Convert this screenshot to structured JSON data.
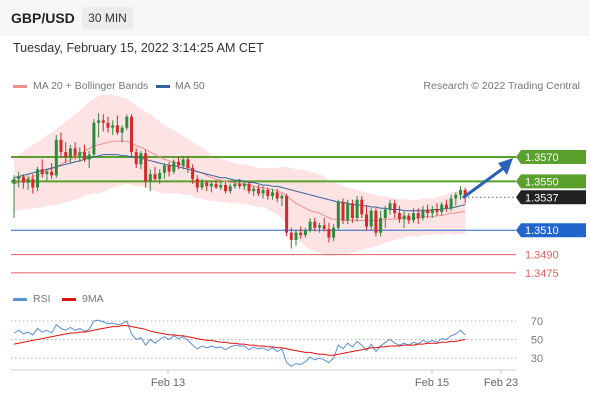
{
  "header": {
    "symbol": "GBP/USD",
    "timeframe": "30 MIN"
  },
  "datetime": "Tuesday, February 15, 2022 3:14:25 AM CET",
  "legend": {
    "ma20": "MA 20 + Bollinger Bands",
    "ma50": "MA 50",
    "credit": "Research © 2022 Trading Central",
    "rsi": "RSI",
    "ma9": "9MA"
  },
  "colors": {
    "ma20": "#f08f8f",
    "band_fill": "#fde3e3",
    "ma50": "#35609e",
    "up_candle": "#2e8b3d",
    "down_candle": "#d42a2a",
    "resistance": "#5aa02c",
    "pivot": "#2266cc",
    "support": "#e06060",
    "current": "#222222",
    "arrow": "#2a62b8",
    "rsi": "#5b8fd6",
    "rsi_ma": "#dd1111"
  },
  "chart_data": [
    {
      "type": "candlestick",
      "title": "GBP/USD 30 MIN",
      "x_labels": [
        "Feb 13",
        "Feb 15",
        "Feb 23"
      ],
      "levels": [
        {
          "value": 1.357,
          "label": "1.3570",
          "kind": "resistance"
        },
        {
          "value": 1.355,
          "label": "1.3550",
          "kind": "resistance"
        },
        {
          "value": 1.3537,
          "label": "1.3537",
          "kind": "current"
        },
        {
          "value": 1.351,
          "label": "1.3510",
          "kind": "pivot"
        },
        {
          "value": 1.349,
          "label": "1.3490",
          "kind": "support"
        },
        {
          "value": 1.3475,
          "label": "1.3475",
          "kind": "support"
        }
      ],
      "forecast_direction": "up",
      "ohlc": [
        [
          1.3548,
          1.3555,
          1.352,
          1.3552
        ],
        [
          1.3552,
          1.3558,
          1.3545,
          1.3554
        ],
        [
          1.3554,
          1.3556,
          1.3544,
          1.3549
        ],
        [
          1.3549,
          1.3555,
          1.3543,
          1.3552
        ],
        [
          1.3552,
          1.3556,
          1.354,
          1.3545
        ],
        [
          1.3545,
          1.3562,
          1.3542,
          1.356
        ],
        [
          1.356,
          1.3568,
          1.3553,
          1.3556
        ],
        [
          1.3556,
          1.356,
          1.355,
          1.3558
        ],
        [
          1.3558,
          1.3565,
          1.3552,
          1.3555
        ],
        [
          1.3555,
          1.3588,
          1.3553,
          1.3584
        ],
        [
          1.3584,
          1.359,
          1.357,
          1.3574
        ],
        [
          1.3574,
          1.3582,
          1.3565,
          1.357
        ],
        [
          1.357,
          1.358,
          1.3565,
          1.3577
        ],
        [
          1.3577,
          1.3582,
          1.3568,
          1.3571
        ],
        [
          1.3571,
          1.3578,
          1.3566,
          1.3574
        ],
        [
          1.3574,
          1.358,
          1.3566,
          1.3568
        ],
        [
          1.3568,
          1.3575,
          1.3561,
          1.3572
        ],
        [
          1.3572,
          1.3601,
          1.357,
          1.3598
        ],
        [
          1.3598,
          1.3606,
          1.3586,
          1.36
        ],
        [
          1.36,
          1.3605,
          1.3591,
          1.3598
        ],
        [
          1.3598,
          1.3603,
          1.359,
          1.3594
        ],
        [
          1.3594,
          1.36,
          1.3588,
          1.3596
        ],
        [
          1.3596,
          1.3604,
          1.3588,
          1.359
        ],
        [
          1.359,
          1.3596,
          1.3582,
          1.3594
        ],
        [
          1.3594,
          1.3605,
          1.3592,
          1.3603
        ],
        [
          1.3603,
          1.3605,
          1.357,
          1.3574
        ],
        [
          1.3574,
          1.3577,
          1.3561,
          1.3564
        ],
        [
          1.3564,
          1.3575,
          1.356,
          1.3573
        ],
        [
          1.3573,
          1.3576,
          1.3545,
          1.355
        ],
        [
          1.355,
          1.356,
          1.3542,
          1.3556
        ],
        [
          1.3556,
          1.3562,
          1.355,
          1.3552
        ],
        [
          1.3552,
          1.356,
          1.3548,
          1.3557
        ],
        [
          1.3557,
          1.3565,
          1.3552,
          1.3563
        ],
        [
          1.3563,
          1.3566,
          1.3554,
          1.3558
        ],
        [
          1.3558,
          1.3568,
          1.3556,
          1.3566
        ],
        [
          1.3566,
          1.357,
          1.356,
          1.3563
        ],
        [
          1.3563,
          1.3571,
          1.356,
          1.3568
        ],
        [
          1.3568,
          1.3571,
          1.3557,
          1.3561
        ],
        [
          1.3561,
          1.3564,
          1.3548,
          1.3552
        ],
        [
          1.3552,
          1.3555,
          1.3541,
          1.3545
        ],
        [
          1.3545,
          1.3552,
          1.3543,
          1.3549
        ],
        [
          1.3549,
          1.3551,
          1.3542,
          1.3546
        ],
        [
          1.3546,
          1.355,
          1.3541,
          1.3548
        ],
        [
          1.3548,
          1.3551,
          1.3544,
          1.3545
        ],
        [
          1.3545,
          1.355,
          1.3543,
          1.3547
        ],
        [
          1.3547,
          1.3549,
          1.354,
          1.3542
        ],
        [
          1.3542,
          1.3548,
          1.354,
          1.3546
        ],
        [
          1.3546,
          1.355,
          1.3544,
          1.3548
        ],
        [
          1.3548,
          1.3552,
          1.3544,
          1.3546
        ],
        [
          1.3546,
          1.355,
          1.3543,
          1.3548
        ],
        [
          1.3548,
          1.355,
          1.354,
          1.3542
        ],
        [
          1.3542,
          1.3546,
          1.3538,
          1.3544
        ],
        [
          1.3544,
          1.3547,
          1.3538,
          1.354
        ],
        [
          1.354,
          1.3546,
          1.3536,
          1.3543
        ],
        [
          1.3543,
          1.3545,
          1.3535,
          1.3538
        ],
        [
          1.3538,
          1.3544,
          1.3535,
          1.3541
        ],
        [
          1.3541,
          1.3544,
          1.3533,
          1.3536
        ],
        [
          1.3536,
          1.354,
          1.353,
          1.3538
        ],
        [
          1.3538,
          1.354,
          1.3505,
          1.3508
        ],
        [
          1.3508,
          1.3512,
          1.3495,
          1.3502
        ],
        [
          1.3502,
          1.351,
          1.3497,
          1.3508
        ],
        [
          1.3508,
          1.3513,
          1.3503,
          1.3506
        ],
        [
          1.3506,
          1.3512,
          1.3504,
          1.351
        ],
        [
          1.351,
          1.352,
          1.3508,
          1.3517
        ],
        [
          1.3517,
          1.352,
          1.3509,
          1.3512
        ],
        [
          1.3512,
          1.3516,
          1.3508,
          1.3514
        ],
        [
          1.3514,
          1.352,
          1.3509,
          1.3511
        ],
        [
          1.3511,
          1.3516,
          1.35,
          1.3504
        ],
        [
          1.3504,
          1.3515,
          1.3501,
          1.3512
        ],
        [
          1.3512,
          1.3535,
          1.351,
          1.3533
        ],
        [
          1.3533,
          1.3536,
          1.3515,
          1.3518
        ],
        [
          1.3518,
          1.3535,
          1.3515,
          1.3532
        ],
        [
          1.3532,
          1.3535,
          1.3516,
          1.352
        ],
        [
          1.352,
          1.3538,
          1.3517,
          1.3535
        ],
        [
          1.3535,
          1.3538,
          1.352,
          1.3523
        ],
        [
          1.3523,
          1.353,
          1.351,
          1.3513
        ],
        [
          1.3513,
          1.3528,
          1.351,
          1.3526
        ],
        [
          1.3526,
          1.3528,
          1.3505,
          1.3508
        ],
        [
          1.3508,
          1.3526,
          1.3505,
          1.352
        ],
        [
          1.352,
          1.353,
          1.3512,
          1.3527
        ],
        [
          1.3527,
          1.3535,
          1.3523,
          1.3532
        ],
        [
          1.3532,
          1.3535,
          1.352,
          1.3524
        ],
        [
          1.3524,
          1.353,
          1.3516,
          1.3519
        ],
        [
          1.3519,
          1.3525,
          1.3512,
          1.3522
        ],
        [
          1.3522,
          1.3524,
          1.3515,
          1.3518
        ],
        [
          1.3518,
          1.3528,
          1.3516,
          1.3524
        ],
        [
          1.3524,
          1.3528,
          1.3515,
          1.352
        ],
        [
          1.352,
          1.353,
          1.3518,
          1.3527
        ],
        [
          1.3527,
          1.3531,
          1.352,
          1.3524
        ],
        [
          1.3524,
          1.353,
          1.352,
          1.3527
        ],
        [
          1.3527,
          1.3532,
          1.3522,
          1.3525
        ],
        [
          1.3525,
          1.3533,
          1.3522,
          1.3531
        ],
        [
          1.3531,
          1.3535,
          1.3525,
          1.3528
        ],
        [
          1.3528,
          1.3539,
          1.3526,
          1.3536
        ],
        [
          1.3536,
          1.3541,
          1.353,
          1.3539
        ],
        [
          1.3539,
          1.3546,
          1.3535,
          1.3543
        ],
        [
          1.3543,
          1.3545,
          1.3532,
          1.3537
        ]
      ],
      "ma20": [
        1.3548,
        1.3549,
        1.3551,
        1.3552,
        1.3554,
        1.3555,
        1.3557,
        1.3559,
        1.356,
        1.3562,
        1.3564,
        1.3566,
        1.3568,
        1.357,
        1.3572,
        1.3575,
        1.3577,
        1.3579,
        1.358,
        1.3581,
        1.3582,
        1.3583,
        1.3583,
        1.3583,
        1.3583,
        1.3581,
        1.3579,
        1.3578,
        1.3576,
        1.3574,
        1.3572,
        1.357,
        1.3568,
        1.3567,
        1.3566,
        1.3565,
        1.3563,
        1.3562,
        1.356,
        1.3558,
        1.3557,
        1.3555,
        1.3553,
        1.3552,
        1.3551,
        1.355,
        1.3549,
        1.3549,
        1.3548,
        1.3548,
        1.3547,
        1.3546,
        1.3545,
        1.3545,
        1.3544,
        1.3543,
        1.3542,
        1.3541,
        1.3538,
        1.3535,
        1.3532,
        1.353,
        1.3528,
        1.3526,
        1.3525,
        1.3524,
        1.3522,
        1.352,
        1.3519,
        1.3519,
        1.3518,
        1.3518,
        1.3518,
        1.3518,
        1.3518,
        1.3518,
        1.3518,
        1.3518,
        1.3518,
        1.3519,
        1.3519,
        1.3519,
        1.3519,
        1.352,
        1.352,
        1.352,
        1.352,
        1.3521,
        1.3521,
        1.3521,
        1.3522,
        1.3522,
        1.3523,
        1.3524,
        1.3524,
        1.3525,
        1.3525
      ],
      "bb_width": [
        0.0022,
        0.0023,
        0.0024,
        0.0025,
        0.0026,
        0.0027,
        0.0028,
        0.0029,
        0.003,
        0.0031,
        0.0032,
        0.0033,
        0.0034,
        0.0035,
        0.0036,
        0.0037,
        0.0038,
        0.0039,
        0.004,
        0.004,
        0.0039,
        0.0038,
        0.0037,
        0.0036,
        0.0035,
        0.0034,
        0.0033,
        0.0032,
        0.0031,
        0.0031,
        0.003,
        0.0029,
        0.0028,
        0.0027,
        0.0026,
        0.0025,
        0.0024,
        0.0023,
        0.0022,
        0.0022,
        0.0021,
        0.002,
        0.0019,
        0.0018,
        0.0018,
        0.0017,
        0.0017,
        0.0016,
        0.0016,
        0.0016,
        0.0016,
        0.0016,
        0.0016,
        0.0016,
        0.0017,
        0.0018,
        0.0019,
        0.0021,
        0.0024,
        0.0026,
        0.0028,
        0.003,
        0.0031,
        0.0032,
        0.0032,
        0.0032,
        0.0032,
        0.0031,
        0.003,
        0.0029,
        0.0028,
        0.0027,
        0.0026,
        0.0025,
        0.0024,
        0.0023,
        0.0022,
        0.0021,
        0.002,
        0.0019,
        0.0018,
        0.0017,
        0.0016,
        0.0016,
        0.0015,
        0.0015,
        0.0015,
        0.0015,
        0.0015,
        0.0015,
        0.0015,
        0.0016,
        0.0016,
        0.0017,
        0.0018,
        0.0018,
        0.0018
      ],
      "ma50": [
        1.3553,
        1.3554,
        1.3555,
        1.3556,
        1.3557,
        1.3558,
        1.3559,
        1.356,
        1.3561,
        1.3562,
        1.3563,
        1.3564,
        1.3565,
        1.3566,
        1.3567,
        1.3568,
        1.3569,
        1.357,
        1.3571,
        1.3572,
        1.3572,
        1.3572,
        1.3572,
        1.3571,
        1.3571,
        1.357,
        1.357,
        1.3569,
        1.3568,
        1.3567,
        1.3566,
        1.3565,
        1.3564,
        1.3563,
        1.3563,
        1.3562,
        1.3561,
        1.356,
        1.3559,
        1.3558,
        1.3557,
        1.3556,
        1.3555,
        1.3554,
        1.3553,
        1.3553,
        1.3552,
        1.3551,
        1.3551,
        1.355,
        1.3549,
        1.3549,
        1.3548,
        1.3547,
        1.3547,
        1.3546,
        1.3546,
        1.3545,
        1.3544,
        1.3543,
        1.3542,
        1.3541,
        1.354,
        1.3539,
        1.3538,
        1.3537,
        1.3536,
        1.3535,
        1.3534,
        1.3533,
        1.3533,
        1.3532,
        1.3531,
        1.3531,
        1.353,
        1.353,
        1.3529,
        1.3529,
        1.3528,
        1.3528,
        1.3527,
        1.3527,
        1.3527,
        1.3526,
        1.3526,
        1.3526,
        1.3526,
        1.3526,
        1.3526,
        1.3527,
        1.3527,
        1.3527,
        1.3528,
        1.3528,
        1.3529,
        1.353,
        1.3531
      ]
    },
    {
      "type": "line",
      "title": "RSI",
      "y_ticks": [
        70,
        50,
        30
      ],
      "ylim": [
        15,
        85
      ],
      "series": [
        {
          "name": "RSI",
          "values": [
            57,
            60,
            56,
            58,
            55,
            62,
            58,
            60,
            57,
            66,
            62,
            60,
            63,
            60,
            62,
            59,
            61,
            70,
            71,
            69,
            67,
            68,
            66,
            67,
            70,
            56,
            50,
            52,
            44,
            50,
            46,
            50,
            53,
            50,
            54,
            51,
            53,
            49,
            44,
            40,
            43,
            41,
            43,
            41,
            42,
            39,
            42,
            44,
            43,
            43,
            39,
            42,
            40,
            41,
            38,
            41,
            37,
            40,
            25,
            21,
            24,
            23,
            26,
            31,
            28,
            30,
            28,
            25,
            30,
            44,
            40,
            46,
            42,
            48,
            44,
            38,
            45,
            37,
            43,
            47,
            50,
            46,
            44,
            46,
            44,
            47,
            45,
            49,
            47,
            49,
            47,
            51,
            50,
            54,
            56,
            60,
            55
          ]
        },
        {
          "name": "9MA",
          "values": [
            45,
            46,
            47,
            48,
            49,
            50,
            51,
            52,
            53,
            54,
            55,
            56,
            57,
            57,
            58,
            58,
            59,
            60,
            61,
            62,
            63,
            64,
            64,
            65,
            65,
            64,
            63,
            62,
            61,
            59,
            58,
            57,
            56,
            55,
            55,
            54,
            54,
            53,
            52,
            51,
            50,
            49,
            49,
            48,
            47,
            47,
            46,
            46,
            45,
            45,
            44,
            44,
            43,
            43,
            42,
            42,
            41,
            41,
            40,
            39,
            38,
            37,
            36,
            36,
            35,
            34,
            34,
            33,
            33,
            34,
            35,
            36,
            37,
            38,
            39,
            40,
            41,
            41,
            42,
            42,
            43,
            43,
            43,
            44,
            44,
            44,
            45,
            45,
            46,
            46,
            46,
            47,
            47,
            48,
            48,
            49,
            50
          ]
        }
      ]
    }
  ]
}
